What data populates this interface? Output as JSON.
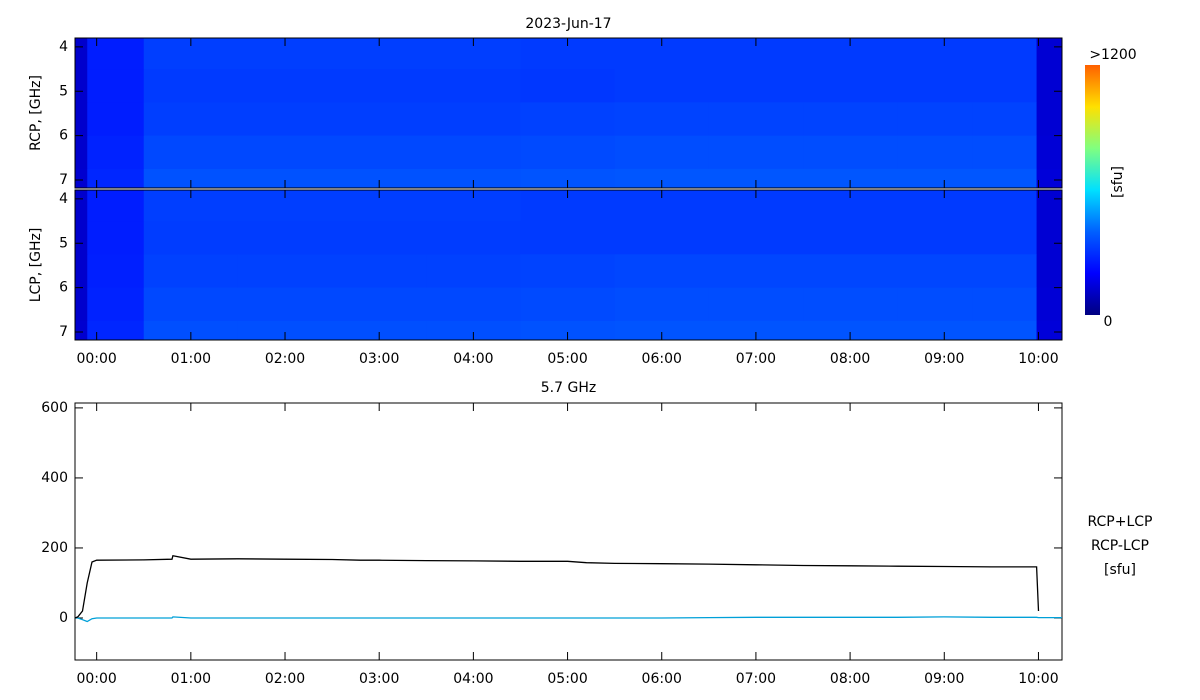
{
  "chart_data": [
    {
      "type": "heatmap",
      "title": "2023-Jun-17",
      "ylabel": "RCP, [GHz]",
      "x_edges": [
        -0.23,
        -0.1,
        0.5,
        1.5,
        2.5,
        3.5,
        4.5,
        5.5,
        6.5,
        7.5,
        8.5,
        9.3,
        9.98,
        10.25
      ],
      "y_edges": [
        3.8,
        4.5,
        5.25,
        6,
        6.75,
        7.18
      ],
      "z": [
        [
          120,
          260,
          330,
          330,
          330,
          330,
          320,
          320,
          320,
          320,
          320,
          320,
          130
        ],
        [
          120,
          260,
          320,
          320,
          320,
          320,
          315,
          320,
          320,
          320,
          320,
          320,
          130
        ],
        [
          120,
          260,
          330,
          330,
          330,
          330,
          335,
          340,
          340,
          340,
          340,
          340,
          130
        ],
        [
          120,
          270,
          350,
          350,
          350,
          350,
          355,
          360,
          360,
          360,
          360,
          360,
          135
        ],
        [
          125,
          280,
          370,
          370,
          370,
          370,
          375,
          380,
          380,
          380,
          380,
          380,
          140
        ]
      ],
      "xlim": [
        -0.23,
        10.25
      ],
      "ylim": [
        7.18,
        3.8
      ],
      "xticks": [
        0,
        1,
        2,
        3,
        4,
        5,
        6,
        7,
        8,
        9,
        10
      ],
      "yticks": [
        4,
        5,
        6,
        7
      ],
      "colorbar": {
        "zlim": [
          0,
          1200
        ],
        "ticks": [
          0,
          {
            "value": 1200,
            "label": ">1200"
          }
        ],
        "label": "[sfu]",
        "colormap": [
          "#000080",
          "#0000ff",
          "#0060ff",
          "#00e0ff",
          "#80ff80",
          "#ffe000",
          "#ff6000"
        ]
      }
    },
    {
      "type": "heatmap",
      "ylabel": "LCP, [GHz]",
      "x_edges": [
        -0.23,
        -0.1,
        0.5,
        1.5,
        2.5,
        3.5,
        4.5,
        5.5,
        6.5,
        7.5,
        8.5,
        9.3,
        9.98,
        10.25
      ],
      "y_edges": [
        3.8,
        4.5,
        5.25,
        6,
        6.75,
        7.18
      ],
      "z": [
        [
          120,
          260,
          330,
          330,
          330,
          330,
          320,
          320,
          320,
          320,
          320,
          320,
          130
        ],
        [
          120,
          260,
          325,
          325,
          325,
          325,
          320,
          320,
          320,
          320,
          320,
          320,
          130
        ],
        [
          120,
          265,
          335,
          335,
          335,
          335,
          340,
          345,
          345,
          345,
          345,
          345,
          130
        ],
        [
          120,
          270,
          350,
          350,
          350,
          350,
          355,
          360,
          360,
          360,
          360,
          360,
          135
        ],
        [
          125,
          280,
          365,
          365,
          365,
          365,
          370,
          375,
          375,
          375,
          375,
          375,
          140
        ]
      ],
      "xlim": [
        -0.23,
        10.25
      ],
      "ylim": [
        7.18,
        3.8
      ],
      "xticks": [
        {
          "value": 0,
          "label": "00:00"
        },
        {
          "value": 1,
          "label": "01:00"
        },
        {
          "value": 2,
          "label": "02:00"
        },
        {
          "value": 3,
          "label": "03:00"
        },
        {
          "value": 4,
          "label": "04:00"
        },
        {
          "value": 5,
          "label": "05:00"
        },
        {
          "value": 6,
          "label": "06:00"
        },
        {
          "value": 7,
          "label": "07:00"
        },
        {
          "value": 8,
          "label": "08:00"
        },
        {
          "value": 9,
          "label": "09:00"
        },
        {
          "value": 10,
          "label": "10:00"
        }
      ],
      "yticks": [
        4,
        5,
        6,
        7
      ]
    },
    {
      "type": "line",
      "title": "5.7 GHz",
      "unit_label": "[sfu]",
      "x": [
        -0.23,
        -0.2,
        -0.15,
        -0.1,
        -0.05,
        0,
        0.5,
        0.8,
        0.81,
        1,
        1.5,
        2,
        2.5,
        2.8,
        3,
        3.5,
        4,
        4.5,
        5,
        5.2,
        5.5,
        6,
        6.5,
        7,
        7.5,
        8,
        8.5,
        9,
        9.5,
        9.98,
        10.0,
        10.25
      ],
      "series": [
        {
          "name": "RCP+LCP",
          "color": "#000000",
          "values": [
            0,
            3,
            20,
            100,
            160,
            165,
            166,
            168,
            178,
            168,
            169,
            168,
            167,
            165,
            165,
            164,
            163,
            162,
            162,
            158,
            156,
            155,
            154,
            152,
            150,
            149,
            148,
            147,
            146,
            146,
            20,
            null
          ]
        },
        {
          "name": "RCP-LCP",
          "color": "#00a0d8",
          "values": [
            0,
            0,
            -5,
            -10,
            -2,
            0,
            0,
            0,
            3,
            0,
            0,
            0,
            0,
            0,
            0,
            0,
            0,
            0,
            0,
            0,
            0,
            0,
            1,
            2,
            2,
            2,
            2,
            3,
            2,
            2,
            1,
            1
          ]
        }
      ],
      "xlim": [
        -0.23,
        10.25
      ],
      "ylim": [
        -120,
        614
      ],
      "xticks": [
        {
          "value": 0,
          "label": "00:00"
        },
        {
          "value": 1,
          "label": "01:00"
        },
        {
          "value": 2,
          "label": "02:00"
        },
        {
          "value": 3,
          "label": "03:00"
        },
        {
          "value": 4,
          "label": "04:00"
        },
        {
          "value": 5,
          "label": "05:00"
        },
        {
          "value": 6,
          "label": "06:00"
        },
        {
          "value": 7,
          "label": "07:00"
        },
        {
          "value": 8,
          "label": "08:00"
        },
        {
          "value": 9,
          "label": "09:00"
        },
        {
          "value": 10,
          "label": "10:00"
        }
      ],
      "yticks": [
        0,
        200,
        400,
        600
      ]
    }
  ]
}
